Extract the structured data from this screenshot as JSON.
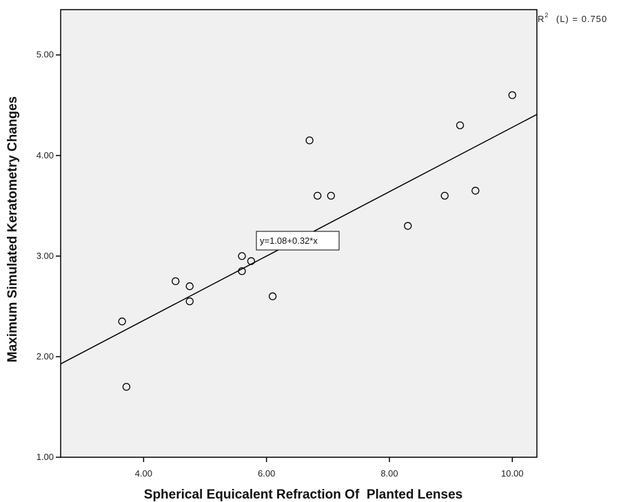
{
  "chart_data": {
    "type": "scatter",
    "xlabel": "Spherical Equicalent Refraction Of  Planted Lenses",
    "ylabel": "Maximum Simulated Keratometry Changes",
    "xlim": [
      2.65,
      10.4
    ],
    "ylim": [
      1.0,
      5.45
    ],
    "x_ticks": [
      4.0,
      6.0,
      8.0,
      10.0
    ],
    "x_tick_labels": [
      "4.00",
      "6.00",
      "8.00",
      "10.00"
    ],
    "y_ticks": [
      1.0,
      2.0,
      3.0,
      4.0,
      5.0
    ],
    "y_tick_labels": [
      "1.00",
      "2.00",
      "3.00",
      "4.00",
      "5.00"
    ],
    "grid": false,
    "background": "#f0f0f0",
    "points": [
      {
        "x": 3.65,
        "y": 2.35
      },
      {
        "x": 3.72,
        "y": 1.7
      },
      {
        "x": 4.52,
        "y": 2.75
      },
      {
        "x": 4.75,
        "y": 2.7
      },
      {
        "x": 4.75,
        "y": 2.55
      },
      {
        "x": 5.6,
        "y": 3.0
      },
      {
        "x": 5.6,
        "y": 2.85
      },
      {
        "x": 5.75,
        "y": 2.95
      },
      {
        "x": 6.1,
        "y": 2.6
      },
      {
        "x": 6.7,
        "y": 4.15
      },
      {
        "x": 6.83,
        "y": 3.6
      },
      {
        "x": 7.05,
        "y": 3.6
      },
      {
        "x": 8.3,
        "y": 3.3
      },
      {
        "x": 8.9,
        "y": 3.6
      },
      {
        "x": 9.15,
        "y": 4.3
      },
      {
        "x": 9.4,
        "y": 3.65
      },
      {
        "x": 10.0,
        "y": 4.6
      }
    ],
    "fit_line": {
      "intercept": 1.08,
      "slope": 0.32
    },
    "equation_label": "y=1.08+0.32*x",
    "r2_label": "(L) = 0.750"
  }
}
